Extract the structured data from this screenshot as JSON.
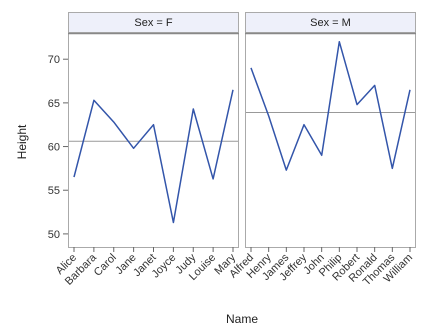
{
  "chart_data": {
    "type": "line",
    "xlabel": "Name",
    "ylabel": "Height",
    "ylim": [
      48.5,
      73
    ],
    "yticks": [
      50,
      55,
      60,
      65,
      70
    ],
    "grid": false,
    "series_color": "#3355aa",
    "reference_line_color": "#999999",
    "panel_header_color": "#eef0fa",
    "panels": [
      {
        "label": "Sex = F",
        "categories": [
          "Alice",
          "Barbara",
          "Carol",
          "Jane",
          "Janet",
          "Joyce",
          "Judy",
          "Louise",
          "Mary"
        ],
        "values": [
          56.5,
          65.3,
          62.8,
          59.8,
          62.5,
          51.3,
          64.3,
          56.3,
          66.5
        ],
        "reference_line": 60.6
      },
      {
        "label": "Sex = M",
        "categories": [
          "Alfred",
          "Henry",
          "James",
          "Jeffrey",
          "John",
          "Philip",
          "Robert",
          "Ronald",
          "Thomas",
          "William"
        ],
        "values": [
          69.0,
          63.5,
          57.3,
          62.5,
          59.0,
          72.0,
          64.8,
          67.0,
          57.5,
          66.5
        ],
        "reference_line": 63.9
      }
    ]
  }
}
